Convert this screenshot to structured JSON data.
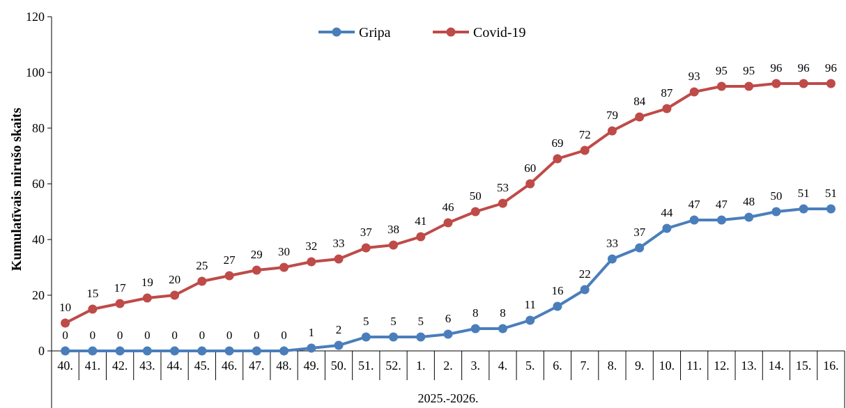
{
  "chart_data": {
    "type": "line",
    "categories": [
      "40.",
      "41.",
      "42.",
      "43.",
      "44.",
      "45.",
      "46.",
      "47.",
      "48.",
      "49.",
      "50.",
      "51.",
      "52.",
      "1.",
      "2.",
      "3.",
      "4.",
      "5.",
      "6.",
      "7.",
      "8.",
      "9.",
      "10.",
      "11.",
      "12.",
      "13.",
      "14.",
      "15.",
      "16."
    ],
    "series": [
      {
        "name": "Gripa",
        "color": "#4a7ebb",
        "values": [
          0,
          0,
          0,
          0,
          0,
          0,
          0,
          0,
          0,
          1,
          2,
          5,
          5,
          5,
          6,
          8,
          8,
          11,
          16,
          22,
          33,
          37,
          44,
          47,
          47,
          48,
          50,
          51,
          51
        ]
      },
      {
        "name": "Covid-19",
        "color": "#be4b48",
        "values": [
          10,
          15,
          17,
          19,
          20,
          25,
          27,
          29,
          30,
          32,
          33,
          37,
          38,
          41,
          46,
          50,
          53,
          60,
          69,
          72,
          79,
          84,
          87,
          93,
          95,
          95,
          96,
          96,
          96
        ]
      }
    ],
    "ylabel": "Kumulatīvais mirušo skaits",
    "xlabel": "2025.-2026.",
    "ylim": [
      0,
      120
    ],
    "yticks": [
      0,
      20,
      40,
      60,
      80,
      100,
      120
    ],
    "legend": "top-center",
    "grid": false
  }
}
